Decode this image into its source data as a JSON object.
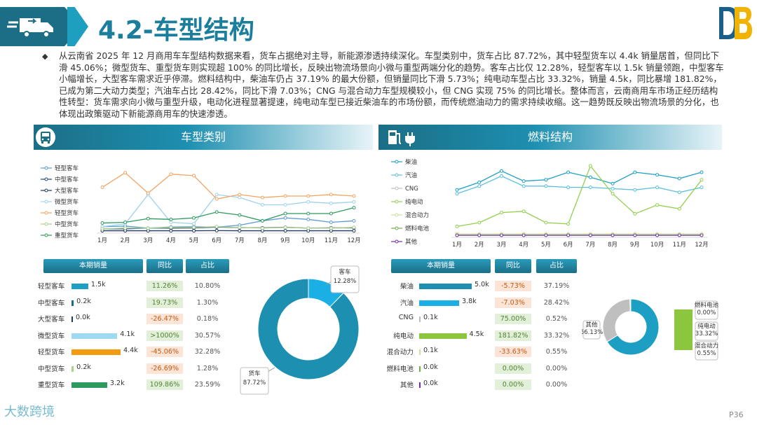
{
  "page": {
    "title": "4.2-车型结构",
    "summary": "从云南省 2025 年 12 月商用车车型结构数据来看，货车占据绝对主导，新能源渗透持续深化。车型类别中，货车占比 87.72%，其中轻型货车以 4.4k 销量居首，但同比下滑 45.06%；微型货车、重型货车则实现超 100% 的同比增长，反映出物流场景向小微与重型两端分化的趋势。客车占比仅 12.28%，轻型客车以 1.5k 销量领跑，中型客车小幅增长，大型客车需求近乎停滞。燃料结构中，柴油车仍占 37.19% 的最大份额，但销量同比下滑 5.73%；纯电动车型占比 33.32%，销量 4.5k，同比暴增 181.82%，已成为第二大动力类型；汽油车占比 28.42%，同比下滑 7.03%；CNG 与混合动力车型规模较小，但 CNG 实现 75% 的同比增长。整体而言，云南商用车市场正经历结构性转型：货车需求向小微与重型升级，电动化进程显著提速，纯电动车型已接近柴油车的市场份额，而传统燃油动力的需求持续收缩。这一趋势既反映出物流场景的分化，也体现出政策驱动下新能源商用车的快速渗透。",
    "page_number": "P36",
    "watermark": "大数跨境"
  },
  "panels": {
    "left_title": "车型类别",
    "right_title": "燃料结构",
    "table_headers": [
      "本期销量",
      "同比",
      "占比"
    ]
  },
  "colors": {
    "primary": "#1b6e86",
    "accent": "#1d9fc3",
    "positive_bg": "#e2f0d9",
    "negative_bg": "#fce4d6",
    "positive_text": "#548235",
    "negative_text": "#c65911"
  },
  "chart_data": [
    {
      "type": "line",
      "x": [
        "1月",
        "2月",
        "3月",
        "4月",
        "5月",
        "6月",
        "7月",
        "8月",
        "9月",
        "10月",
        "11月",
        "12月"
      ],
      "series": [
        {
          "name": "轻型客车",
          "color": "#5b9bd5",
          "values": [
            0.3,
            0.34,
            0.2,
            0.28,
            0.3,
            0.27,
            0.4,
            0.7,
            0.9,
            0.8,
            0.6,
            0.7
          ]
        },
        {
          "name": "中型客车",
          "color": "#264478",
          "values": [
            0.15,
            0.15,
            0.2,
            0.2,
            0.21,
            0.27,
            0.24,
            0.22,
            0.26,
            0.2,
            0.22,
            0.22
          ]
        },
        {
          "name": "大型客车",
          "color": "#1f3864",
          "values": [
            0.02,
            0.02,
            0.02,
            0.02,
            0.02,
            0.03,
            0.02,
            0.02,
            0.02,
            0.02,
            0.02,
            0.02
          ]
        },
        {
          "name": "微型货车",
          "color": "#9dd3ea",
          "values": [
            0.3,
            0.5,
            2.5,
            0.6,
            0.5,
            2.5,
            2.3,
            1.8,
            1.8,
            2.0,
            1.9,
            2.0
          ]
        },
        {
          "name": "轻型货车",
          "color": "#f4a460",
          "values": [
            3.0,
            4.0,
            2.6,
            3.9,
            3.8,
            2.2,
            2.5,
            2.3,
            2.4,
            2.4,
            2.5,
            2.4
          ]
        },
        {
          "name": "中型货车",
          "color": "#a9d08e",
          "values": [
            0.15,
            0.2,
            0.2,
            0.25,
            0.25,
            0.3,
            0.25,
            0.2,
            0.25,
            0.2,
            0.2,
            0.25
          ]
        },
        {
          "name": "重型货车",
          "color": "#2e9b5e",
          "values": [
            0.55,
            0.6,
            0.85,
            0.8,
            0.9,
            1.3,
            1.1,
            0.7,
            1.2,
            1.2,
            1.2,
            1.6
          ]
        }
      ],
      "ylim": [
        0,
        4.8
      ]
    },
    {
      "type": "line",
      "x": [
        "1月",
        "2月",
        "3月",
        "4月",
        "5月",
        "6月",
        "7月",
        "8月",
        "9月",
        "10月",
        "11月",
        "12月"
      ],
      "series": [
        {
          "name": "柴油",
          "color": "#1d9fc3",
          "values": [
            3.6,
            4.2,
            5.1,
            4.3,
            4.4,
            5.0,
            4.6,
            4.1,
            5.0,
            4.8,
            4.5,
            5.0
          ]
        },
        {
          "name": "汽油",
          "color": "#5bc0de",
          "values": [
            3.3,
            3.9,
            4.7,
            3.9,
            3.9,
            3.8,
            3.8,
            3.7,
            3.6,
            3.8,
            3.4,
            3.8
          ]
        },
        {
          "name": "CNG",
          "color": "#bfbfbf",
          "values": [
            0.1,
            0.1,
            0.1,
            0.1,
            0.1,
            0.1,
            0.1,
            0.1,
            0.1,
            0.1,
            0.1,
            0.1
          ]
        },
        {
          "name": "纯电动",
          "color": "#92d050",
          "values": [
            0.7,
            1.0,
            1.8,
            1.9,
            1.0,
            0.9,
            5.5,
            3.3,
            1.7,
            2.4,
            2.1,
            4.4
          ]
        },
        {
          "name": "混合动力",
          "color": "#c9e29a",
          "values": [
            0.1,
            0.1,
            0.1,
            0.1,
            0.1,
            0.1,
            0.1,
            0.1,
            0.1,
            0.1,
            0.1,
            0.1
          ]
        },
        {
          "name": "燃料电池",
          "color": "#70ad47",
          "values": [
            0,
            0,
            0,
            0,
            0,
            0,
            0,
            0,
            0,
            0,
            0,
            0
          ]
        },
        {
          "name": "其他",
          "color": "#7030a0",
          "values": [
            0,
            0,
            0,
            0,
            0,
            0,
            0,
            0,
            0,
            0,
            0,
            0
          ]
        }
      ],
      "ylim": [
        0,
        6
      ]
    },
    {
      "type": "table",
      "name": "车型类别明细",
      "rows": [
        {
          "label": "轻型客车",
          "value": 1.5,
          "value_text": "1.5k",
          "yoy": "11.26%",
          "share": "10.80%",
          "color": "#1d9fc3",
          "sign": "pos"
        },
        {
          "label": "中型客车",
          "value": 0.2,
          "value_text": "0.2k",
          "yoy": "19.73%",
          "share": "1.30%",
          "color": "#1b6e86",
          "sign": "pos"
        },
        {
          "label": "大型客车",
          "value": 0.0,
          "value_text": "0.0k",
          "yoy": "-26.47%",
          "share": "0.18%",
          "color": "#1f3864",
          "sign": "neg"
        },
        {
          "label": "微型货车",
          "value": 4.1,
          "value_text": "4.1k",
          "yoy": ">1000%",
          "share": "30.57%",
          "color": "#9dd9f0",
          "sign": "pos"
        },
        {
          "label": "轻型货车",
          "value": 4.4,
          "value_text": "4.4k",
          "yoy": "-45.06%",
          "share": "32.28%",
          "color": "#f39c12",
          "sign": "neg"
        },
        {
          "label": "中型货车",
          "value": 0.2,
          "value_text": "0.2k",
          "yoy": "-26.69%",
          "share": "1.28%",
          "color": "#a9d08e",
          "sign": "neg"
        },
        {
          "label": "重型货车",
          "value": 3.2,
          "value_text": "3.2k",
          "yoy": "109.86%",
          "share": "23.59%",
          "color": "#2e9b5e",
          "sign": "pos"
        }
      ]
    },
    {
      "type": "pie",
      "slices": [
        {
          "label": "客车",
          "value": 12.28,
          "value_text": "12.28%",
          "color": "#1ab0e6"
        },
        {
          "label": "货车",
          "value": 87.72,
          "value_text": "87.72%",
          "color": "#1d8fb0"
        }
      ]
    },
    {
      "type": "table",
      "name": "燃料结构明细",
      "rows": [
        {
          "label": "柴油",
          "value": 5.0,
          "value_text": "5.0k",
          "yoy": "-5.73%",
          "share": "37.19%",
          "color": "#1d8fb0",
          "sign": "neg"
        },
        {
          "label": "汽油",
          "value": 3.8,
          "value_text": "3.8k",
          "yoy": "-7.03%",
          "share": "28.42%",
          "color": "#1ab0e6",
          "sign": "neg"
        },
        {
          "label": "CNG",
          "value": 0.1,
          "value_text": "0.1k",
          "yoy": "75.00%",
          "share": "0.52%",
          "color": "#bfbfbf",
          "sign": "pos"
        },
        {
          "label": "纯电动",
          "value": 4.5,
          "value_text": "4.5k",
          "yoy": "181.82%",
          "share": "33.32%",
          "color": "#8cc63f",
          "sign": "pos"
        },
        {
          "label": "混合动力",
          "value": 0.1,
          "value_text": "0.1k",
          "yoy": "-33.63%",
          "share": "0.55%",
          "color": "#c9e29a",
          "sign": "neg"
        },
        {
          "label": "燃料电池",
          "value": 0.0,
          "value_text": "0.0k",
          "yoy": "0.00%",
          "share": "0.00%",
          "color": "#70ad47",
          "sign": "pos"
        },
        {
          "label": "其他",
          "value": 0.0,
          "value_text": "0.0k",
          "yoy": "0.00%",
          "share": "0.00%",
          "color": "#7030a0",
          "sign": "pos"
        }
      ]
    },
    {
      "type": "pie",
      "slices": [
        {
          "label": "其他",
          "value": 66.13,
          "value_text": "66.13%",
          "color": "#1d9fc3"
        },
        {
          "label": "纯电动",
          "value": 33.32,
          "value_text": "33.32%",
          "color": "#bfbfbf"
        },
        {
          "label": "混合动力",
          "value": 0.55,
          "value_text": "0.55%",
          "color": "#8cc63f"
        },
        {
          "label": "燃料电池",
          "value": 0.0,
          "value_text": "0.00%",
          "color": "#70ad47"
        }
      ]
    }
  ]
}
